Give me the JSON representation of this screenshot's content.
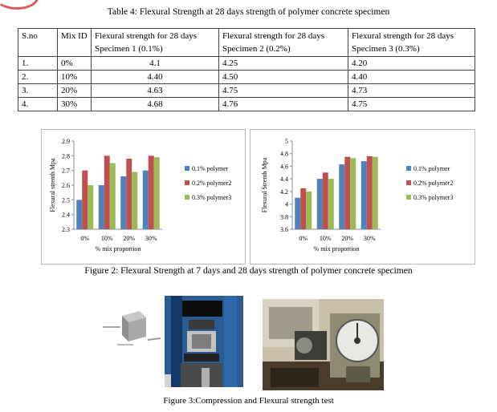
{
  "table": {
    "caption": "Table 4: Flexural Strength at 28 days strength of polymer concrete specimen",
    "headers": [
      "S.no",
      "Mix ID",
      "Flexural strength for 28 days Specimen 1 (0.1%)",
      "Flexural strength for 28 days Specimen 2 (0.2%)",
      "Flexural strength for 28 days Specimen 3 (0.3%)"
    ],
    "rows": [
      [
        "1.",
        "0%",
        "4.1",
        "4.25",
        "4.20"
      ],
      [
        "2.",
        "10%",
        "4.40",
        "4.50",
        "4.40"
      ],
      [
        "3.",
        "20%",
        "4.63",
        "4.75",
        "4.73"
      ],
      [
        "4.",
        "30%",
        "4.68",
        "4.76",
        "4.75"
      ]
    ]
  },
  "chart_data": [
    {
      "type": "bar",
      "categories": [
        "0%",
        "10%",
        "20%",
        "30%"
      ],
      "series": [
        {
          "name": "0.1% polymer",
          "values": [
            2.5,
            2.6,
            2.66,
            2.7
          ],
          "color": "#4f81bd"
        },
        {
          "name": "0.2% polymer2",
          "values": [
            2.7,
            2.8,
            2.78,
            2.8
          ],
          "color": "#c0504d"
        },
        {
          "name": "0.3% polymer3",
          "values": [
            2.6,
            2.75,
            2.69,
            2.79
          ],
          "color": "#9bbb59"
        }
      ],
      "title": "",
      "xlabel": "% mix proportion",
      "ylabel": "Flexural strenth Mpa",
      "ylim": [
        2.3,
        2.9
      ],
      "yticks": [
        "2.3",
        "2.4",
        "2.5",
        "2.6",
        "2.7",
        "2.8",
        "2.9"
      ],
      "grid": false,
      "legend": "right"
    },
    {
      "type": "bar",
      "categories": [
        "0%",
        "10%",
        "20%",
        "30%"
      ],
      "series": [
        {
          "name": "0.1% polymer",
          "values": [
            4.1,
            4.4,
            4.63,
            4.68
          ],
          "color": "#4f81bd"
        },
        {
          "name": "0.2% polymer2",
          "values": [
            4.25,
            4.5,
            4.75,
            4.76
          ],
          "color": "#c0504d"
        },
        {
          "name": "0.3% polymer3",
          "values": [
            4.2,
            4.4,
            4.73,
            4.75
          ],
          "color": "#9bbb59"
        }
      ],
      "title": "",
      "xlabel": "% mix proportion",
      "ylabel": "Flexural Strenth Mpa",
      "ylim": [
        3.6,
        5
      ],
      "yticks": [
        "3.6",
        "3.8",
        "4",
        "4.2",
        "4.4",
        "4.6",
        "4.8",
        "5"
      ],
      "grid": false,
      "legend": "right"
    }
  ],
  "figure2": {
    "caption": "Figure 2: Flexural Strength at 7 days and 28 days strength of polymer concrete specimen"
  },
  "figure3": {
    "caption": "Figure 3:Compression and Flexural strength test"
  }
}
